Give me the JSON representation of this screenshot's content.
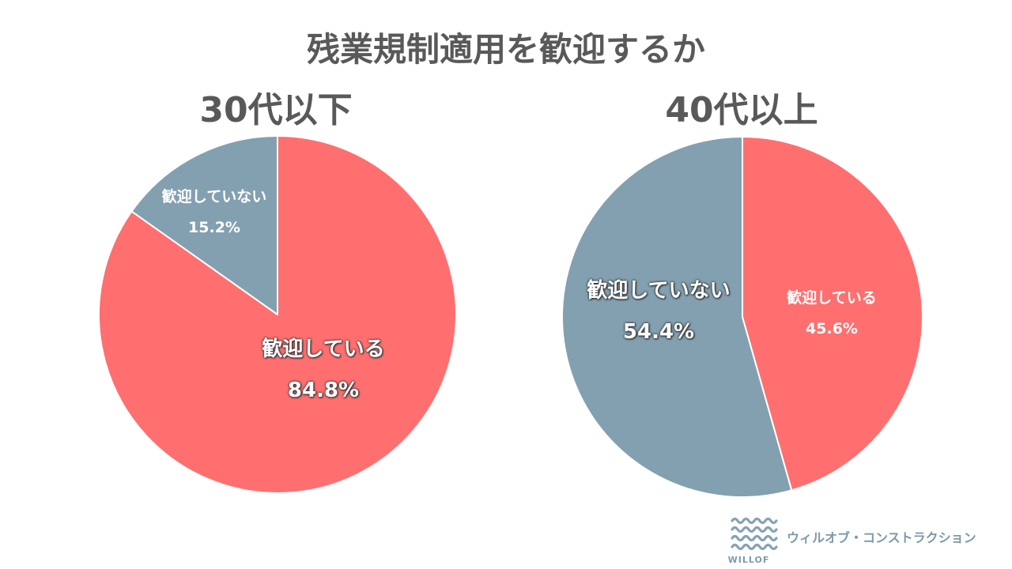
{
  "title": "残業規制適用を歓迎するか",
  "theme": {
    "text_color": "#595959",
    "label_color": "#FFFFFF",
    "brand_color": "#7D99AA",
    "icon_color": "#86A2B3"
  },
  "chart_data": [
    {
      "type": "pie",
      "title": "30代以下",
      "categories": [
        "歓迎している",
        "歓迎していない"
      ],
      "values": [
        84.8,
        15.2
      ],
      "unit": "%",
      "colors": [
        "#FF6F6F",
        "#83A0B1"
      ]
    },
    {
      "type": "pie",
      "title": "40代以上",
      "categories": [
        "歓迎している",
        "歓迎していない"
      ],
      "values": [
        45.6,
        54.4
      ],
      "unit": "%",
      "colors": [
        "#FF6F6F",
        "#83A0B1"
      ]
    }
  ],
  "logo": {
    "icon": "waves-icon",
    "wordmark": "WILLOF",
    "company_name": "ウィルオブ・コンストラクション"
  }
}
